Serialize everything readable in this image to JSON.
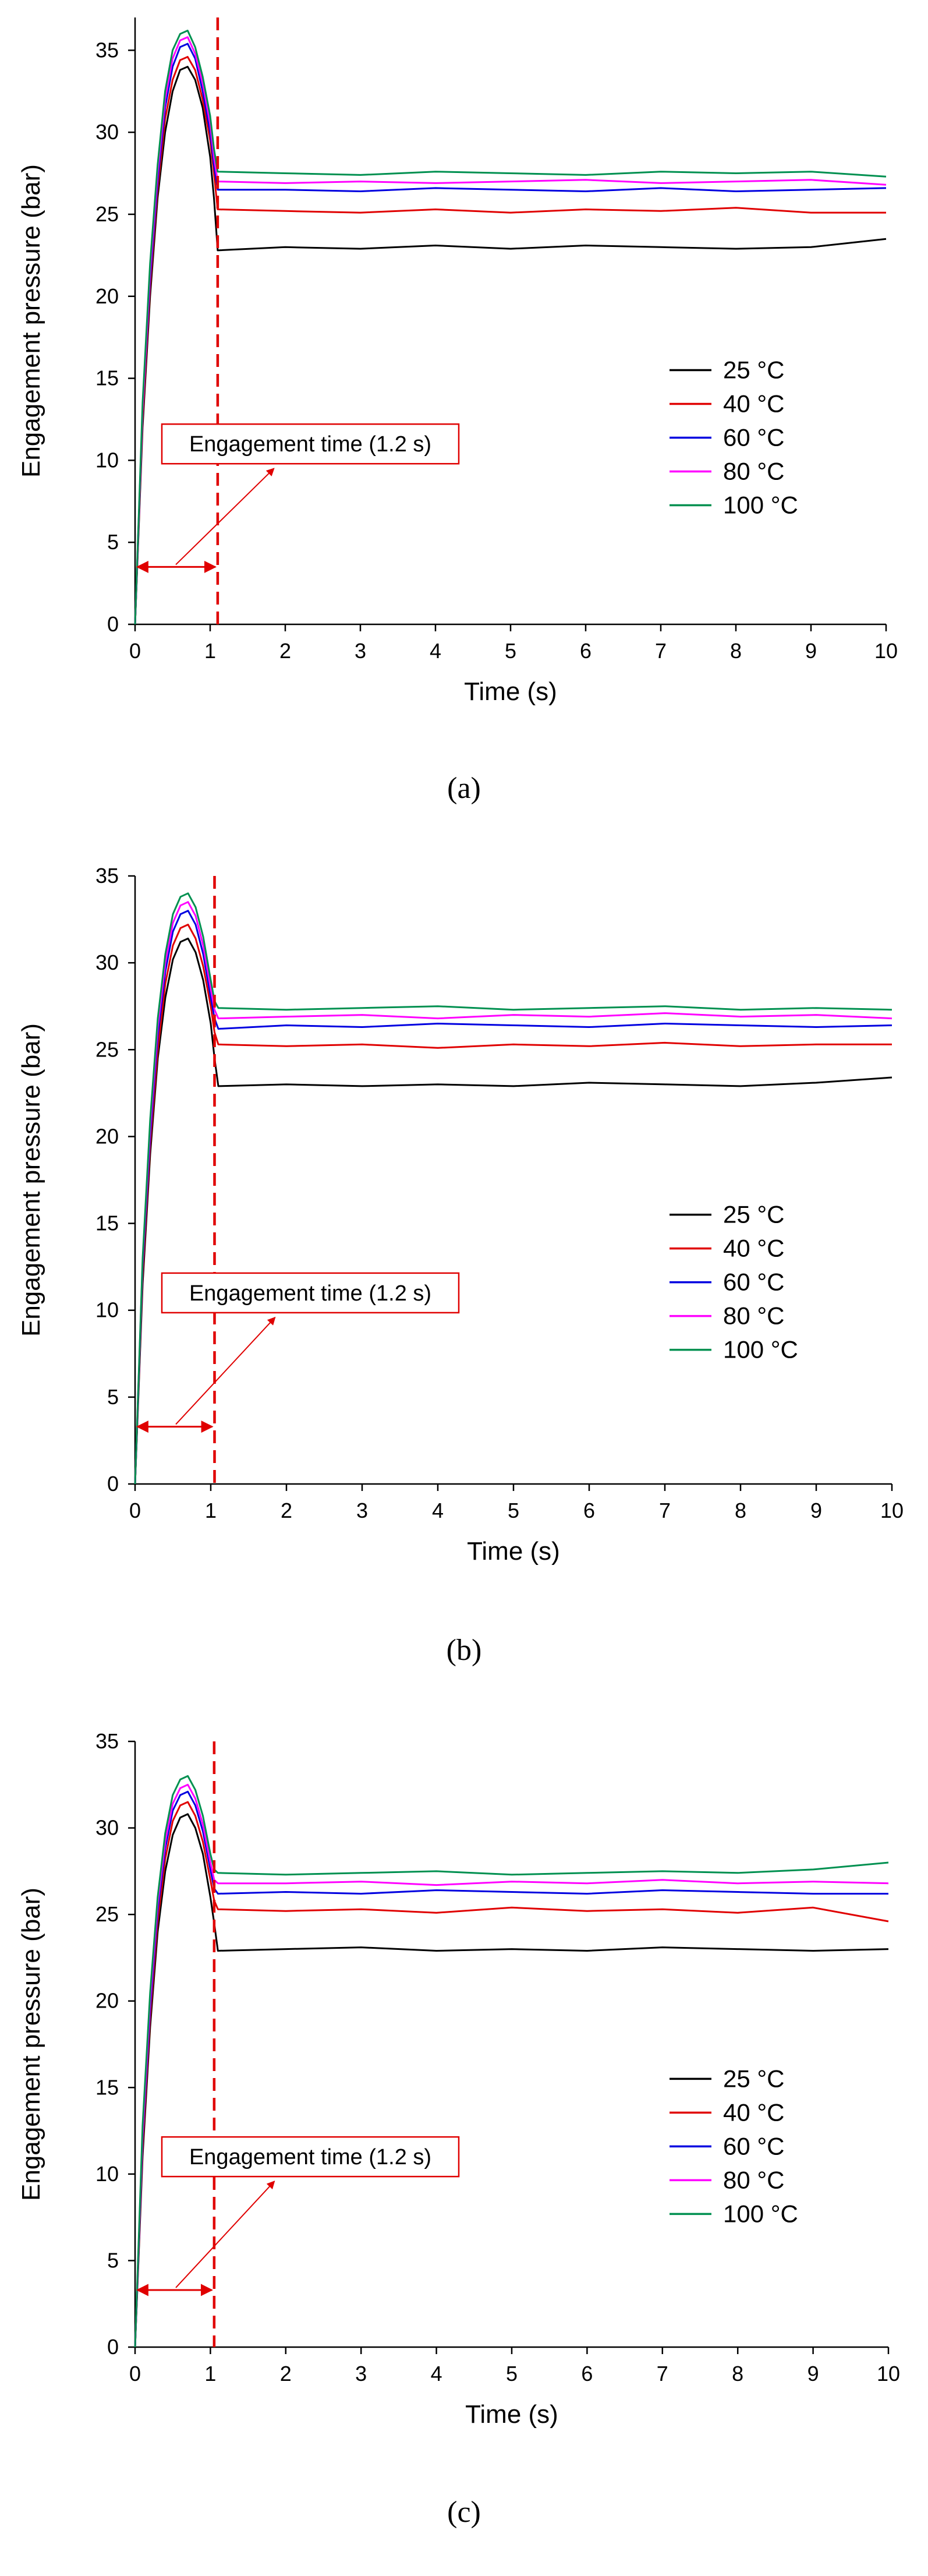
{
  "figure": {
    "panels": [
      "a",
      "b",
      "c"
    ]
  },
  "chart_data": [
    {
      "type": "line",
      "panel_label": "(a)",
      "xlabel": "Time (s)",
      "ylabel": "Engagement pressure (bar)",
      "xlim": [
        0,
        10
      ],
      "ylim": [
        0,
        37
      ],
      "xticks": [
        0,
        1,
        2,
        3,
        4,
        5,
        6,
        7,
        8,
        9,
        10
      ],
      "yticks": [
        0,
        5,
        10,
        15,
        20,
        25,
        30,
        35
      ],
      "legend_position": "right-middle",
      "annotation": {
        "text": "Engagement time (1.2 s)",
        "vline_x": 1.1,
        "vline_color": "#e00000",
        "arrow_span": [
          0,
          1.1
        ],
        "arrow_y": 3.5
      },
      "series": [
        {
          "name": "25 °C",
          "color": "#000000",
          "x": [
            0,
            0.1,
            0.2,
            0.3,
            0.4,
            0.5,
            0.6,
            0.7,
            0.8,
            0.9,
            1.0,
            1.05,
            1.1,
            2,
            3,
            4,
            5,
            6,
            7,
            8,
            9,
            10
          ],
          "values": [
            0,
            12,
            20,
            26,
            30,
            32.5,
            33.8,
            34.0,
            33.2,
            31.5,
            28.5,
            26,
            22.8,
            23.0,
            22.9,
            23.1,
            22.9,
            23.1,
            23.0,
            22.9,
            23.0,
            23.5
          ]
        },
        {
          "name": "40 °C",
          "color": "#e00000",
          "x": [
            0,
            0.1,
            0.2,
            0.3,
            0.4,
            0.5,
            0.6,
            0.7,
            0.8,
            0.9,
            1.0,
            1.05,
            1.1,
            2,
            3,
            4,
            5,
            6,
            7,
            8,
            9,
            10
          ],
          "values": [
            0,
            12.5,
            20.5,
            26.5,
            30.8,
            33.2,
            34.4,
            34.6,
            33.8,
            32.0,
            29.5,
            27.5,
            25.3,
            25.2,
            25.1,
            25.3,
            25.1,
            25.3,
            25.2,
            25.4,
            25.1,
            25.1
          ]
        },
        {
          "name": "60 °C",
          "color": "#0000e0",
          "x": [
            0,
            0.1,
            0.2,
            0.3,
            0.4,
            0.5,
            0.6,
            0.7,
            0.8,
            0.9,
            1.0,
            1.05,
            1.1,
            2,
            3,
            4,
            5,
            6,
            7,
            8,
            9,
            10
          ],
          "values": [
            0,
            13,
            21,
            27,
            31.5,
            34.0,
            35.2,
            35.4,
            34.5,
            32.5,
            30.0,
            28.0,
            26.5,
            26.5,
            26.4,
            26.6,
            26.5,
            26.4,
            26.6,
            26.4,
            26.5,
            26.6
          ]
        },
        {
          "name": "80 °C",
          "color": "#ff00ff",
          "x": [
            0,
            0.1,
            0.2,
            0.3,
            0.4,
            0.5,
            0.6,
            0.7,
            0.8,
            0.9,
            1.0,
            1.05,
            1.1,
            2,
            3,
            4,
            5,
            6,
            7,
            8,
            9,
            10
          ],
          "values": [
            0,
            13,
            21.5,
            27.5,
            32.0,
            34.5,
            35.6,
            35.8,
            34.8,
            33.0,
            30.5,
            28.5,
            27.0,
            26.9,
            27.0,
            26.9,
            27.0,
            27.1,
            26.9,
            27.0,
            27.1,
            26.8
          ]
        },
        {
          "name": "100 °C",
          "color": "#009050",
          "x": [
            0,
            0.1,
            0.2,
            0.3,
            0.4,
            0.5,
            0.6,
            0.7,
            0.8,
            0.9,
            1.0,
            1.05,
            1.1,
            2,
            3,
            4,
            5,
            6,
            7,
            8,
            9,
            10
          ],
          "values": [
            0,
            13.5,
            22,
            28,
            32.5,
            35.0,
            36.0,
            36.2,
            35.2,
            33.4,
            31.0,
            29.0,
            27.6,
            27.5,
            27.4,
            27.6,
            27.5,
            27.4,
            27.6,
            27.5,
            27.6,
            27.3
          ]
        }
      ]
    },
    {
      "type": "line",
      "panel_label": "(b)",
      "xlabel": "Time (s)",
      "ylabel": "Engagement pressure (bar)",
      "xlim": [
        0,
        10
      ],
      "ylim": [
        0,
        35
      ],
      "xticks": [
        0,
        1,
        2,
        3,
        4,
        5,
        6,
        7,
        8,
        9,
        10
      ],
      "yticks": [
        0,
        5,
        10,
        15,
        20,
        25,
        30,
        35
      ],
      "legend_position": "right-middle",
      "annotation": {
        "text": "Engagement time (1.2 s)",
        "vline_x": 1.05,
        "vline_color": "#e00000",
        "arrow_span": [
          0,
          1.05
        ],
        "arrow_y": 3.3
      },
      "series": [
        {
          "name": "25 °C",
          "color": "#000000",
          "x": [
            0,
            0.1,
            0.2,
            0.3,
            0.4,
            0.5,
            0.6,
            0.7,
            0.8,
            0.9,
            1.0,
            1.05,
            1.1,
            2,
            3,
            4,
            5,
            6,
            7,
            8,
            9,
            10
          ],
          "values": [
            0,
            11.5,
            19,
            24.5,
            28,
            30.2,
            31.2,
            31.4,
            30.6,
            29.0,
            26.5,
            24.5,
            22.9,
            23.0,
            22.9,
            23.0,
            22.9,
            23.1,
            23.0,
            22.9,
            23.1,
            23.4
          ]
        },
        {
          "name": "40 °C",
          "color": "#e00000",
          "x": [
            0,
            0.1,
            0.2,
            0.3,
            0.4,
            0.5,
            0.6,
            0.7,
            0.8,
            0.9,
            1.0,
            1.05,
            1.1,
            2,
            3,
            4,
            5,
            6,
            7,
            8,
            9,
            10
          ],
          "values": [
            0,
            12,
            19.5,
            25,
            28.8,
            31.0,
            32.0,
            32.2,
            31.4,
            29.8,
            27.5,
            26.0,
            25.3,
            25.2,
            25.3,
            25.1,
            25.3,
            25.2,
            25.4,
            25.2,
            25.3,
            25.3
          ]
        },
        {
          "name": "60 °C",
          "color": "#0000e0",
          "x": [
            0,
            0.1,
            0.2,
            0.3,
            0.4,
            0.5,
            0.6,
            0.7,
            0.8,
            0.9,
            1.0,
            1.05,
            1.1,
            2,
            3,
            4,
            5,
            6,
            7,
            8,
            9,
            10
          ],
          "values": [
            0,
            12.5,
            20,
            25.8,
            29.5,
            31.8,
            32.8,
            33.0,
            32.2,
            30.5,
            28.0,
            26.8,
            26.2,
            26.4,
            26.3,
            26.5,
            26.4,
            26.3,
            26.5,
            26.4,
            26.3,
            26.4
          ]
        },
        {
          "name": "80 °C",
          "color": "#ff00ff",
          "x": [
            0,
            0.1,
            0.2,
            0.3,
            0.4,
            0.5,
            0.6,
            0.7,
            0.8,
            0.9,
            1.0,
            1.05,
            1.1,
            2,
            3,
            4,
            5,
            6,
            7,
            8,
            9,
            10
          ],
          "values": [
            0,
            12.8,
            20.5,
            26.3,
            30.0,
            32.3,
            33.3,
            33.5,
            32.7,
            31.0,
            28.5,
            27.3,
            26.8,
            26.9,
            27.0,
            26.8,
            27.0,
            26.9,
            27.1,
            26.9,
            27.0,
            26.8
          ]
        },
        {
          "name": "100 °C",
          "color": "#009050",
          "x": [
            0,
            0.1,
            0.2,
            0.3,
            0.4,
            0.5,
            0.6,
            0.7,
            0.8,
            0.9,
            1.0,
            1.05,
            1.1,
            2,
            3,
            4,
            5,
            6,
            7,
            8,
            9,
            10
          ],
          "values": [
            0,
            13,
            21,
            26.8,
            30.5,
            32.8,
            33.8,
            34.0,
            33.2,
            31.5,
            29.0,
            27.8,
            27.4,
            27.3,
            27.4,
            27.5,
            27.3,
            27.4,
            27.5,
            27.3,
            27.4,
            27.3
          ]
        }
      ]
    },
    {
      "type": "line",
      "panel_label": "(c)",
      "xlabel": "Time (s)",
      "ylabel": "Engagement pressure (bar)",
      "xlim": [
        0,
        10
      ],
      "ylim": [
        0,
        35
      ],
      "xticks": [
        0,
        1,
        2,
        3,
        4,
        5,
        6,
        7,
        8,
        9,
        10
      ],
      "yticks": [
        0,
        5,
        10,
        15,
        20,
        25,
        30,
        35
      ],
      "legend_position": "right-middle",
      "annotation": {
        "text": "Engagement time (1.2 s)",
        "vline_x": 1.05,
        "vline_color": "#e00000",
        "arrow_span": [
          0,
          1.05
        ],
        "arrow_y": 3.3
      },
      "series": [
        {
          "name": "25 °C",
          "color": "#000000",
          "x": [
            0,
            0.1,
            0.2,
            0.3,
            0.4,
            0.5,
            0.6,
            0.7,
            0.8,
            0.9,
            1.0,
            1.05,
            1.1,
            2,
            3,
            4,
            5,
            6,
            7,
            8,
            9,
            10
          ],
          "values": [
            0,
            11,
            18.5,
            24,
            27.5,
            29.6,
            30.6,
            30.8,
            30.0,
            28.5,
            26.0,
            24.5,
            22.9,
            23.0,
            23.1,
            22.9,
            23.0,
            22.9,
            23.1,
            23.0,
            22.9,
            23.0
          ]
        },
        {
          "name": "40 °C",
          "color": "#e00000",
          "x": [
            0,
            0.1,
            0.2,
            0.3,
            0.4,
            0.5,
            0.6,
            0.7,
            0.8,
            0.9,
            1.0,
            1.05,
            1.1,
            2,
            3,
            4,
            5,
            6,
            7,
            8,
            9,
            10
          ],
          "values": [
            0,
            11.5,
            19,
            24.6,
            28.2,
            30.4,
            31.3,
            31.5,
            30.7,
            29.2,
            27.0,
            25.8,
            25.3,
            25.2,
            25.3,
            25.1,
            25.4,
            25.2,
            25.3,
            25.1,
            25.4,
            24.6
          ]
        },
        {
          "name": "60 °C",
          "color": "#0000e0",
          "x": [
            0,
            0.1,
            0.2,
            0.3,
            0.4,
            0.5,
            0.6,
            0.7,
            0.8,
            0.9,
            1.0,
            1.05,
            1.1,
            2,
            3,
            4,
            5,
            6,
            7,
            8,
            9,
            10
          ],
          "values": [
            0,
            12,
            19.5,
            25.2,
            28.8,
            31.0,
            31.9,
            32.1,
            31.3,
            29.8,
            27.6,
            26.5,
            26.2,
            26.3,
            26.2,
            26.4,
            26.3,
            26.2,
            26.4,
            26.3,
            26.2,
            26.2
          ]
        },
        {
          "name": "80 °C",
          "color": "#ff00ff",
          "x": [
            0,
            0.1,
            0.2,
            0.3,
            0.4,
            0.5,
            0.6,
            0.7,
            0.8,
            0.9,
            1.0,
            1.05,
            1.1,
            2,
            3,
            4,
            5,
            6,
            7,
            8,
            9,
            10
          ],
          "values": [
            0,
            12.3,
            20,
            25.6,
            29.2,
            31.4,
            32.3,
            32.5,
            31.7,
            30.2,
            28.0,
            27.0,
            26.8,
            26.8,
            26.9,
            26.7,
            26.9,
            26.8,
            27.0,
            26.8,
            26.9,
            26.8
          ]
        },
        {
          "name": "100 °C",
          "color": "#009050",
          "x": [
            0,
            0.1,
            0.2,
            0.3,
            0.4,
            0.5,
            0.6,
            0.7,
            0.8,
            0.9,
            1.0,
            1.05,
            1.1,
            2,
            3,
            4,
            5,
            6,
            7,
            8,
            9,
            10
          ],
          "values": [
            0,
            12.8,
            20.5,
            26.0,
            29.7,
            31.9,
            32.8,
            33.0,
            32.2,
            30.7,
            28.5,
            27.6,
            27.4,
            27.3,
            27.4,
            27.5,
            27.3,
            27.4,
            27.5,
            27.4,
            27.6,
            28.0
          ]
        }
      ]
    }
  ]
}
